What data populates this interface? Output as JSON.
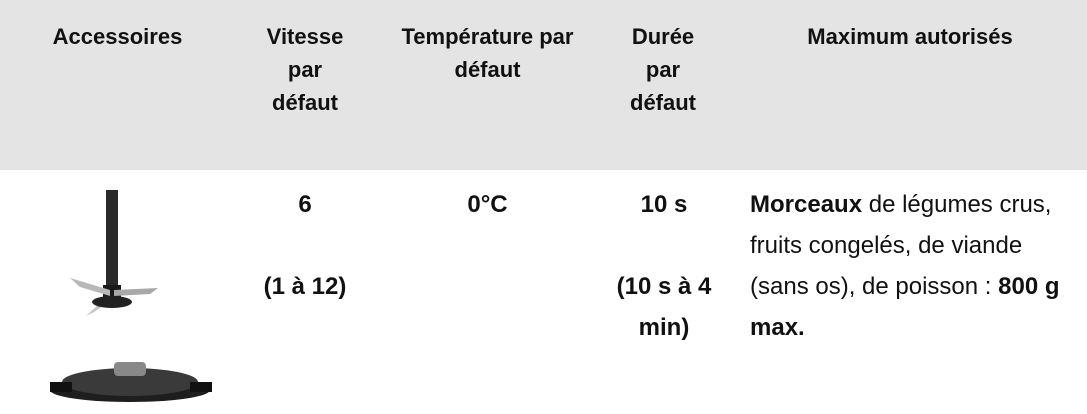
{
  "table": {
    "headers": [
      "Accessoires",
      "Vitesse par défaut",
      "Température par défaut",
      "Durée par défaut",
      "Maximum autorisés"
    ],
    "rows": [
      [
        null,
        [
          "6",
          "(1 à 12)"
        ],
        [
          "0°C"
        ],
        [
          "10 s",
          "(10 s à 4 min)"
        ],
        [
          "Morceaux",
          " de légumes crus, fruits congelés, de viande (sans os), de poisson : ",
          "800 g max."
        ]
      ]
    ]
  }
}
